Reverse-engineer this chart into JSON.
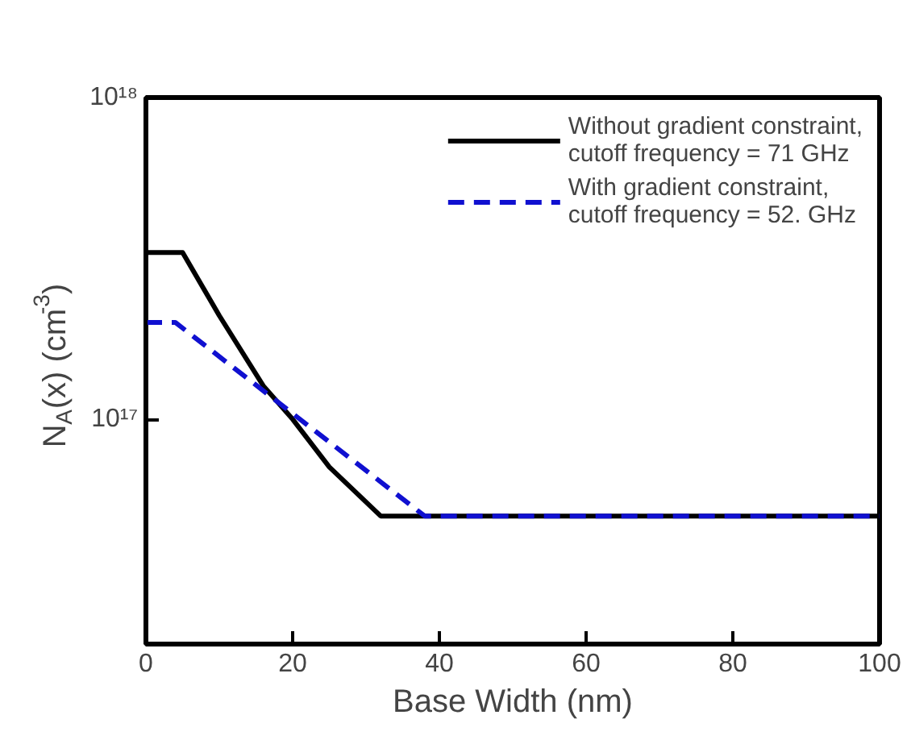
{
  "chart_data": {
    "type": "line",
    "xlabel": "Base Width (nm)",
    "ylabel": "N$_{A}$(x) (cm$^{-3}$)",
    "xlim": [
      0,
      100
    ],
    "xticks": [
      0,
      20,
      40,
      60,
      80,
      100
    ],
    "ylim": [
      2e+16,
      1e+18
    ],
    "yticks": [
      {
        "value": 1e+17,
        "label": "10¹⁷"
      },
      {
        "value": 1e+18,
        "label": "10¹⁸"
      }
    ],
    "log": "y",
    "grid": false,
    "legend": "top right",
    "series": [
      {
        "name": "Without gradient constraint,\ncutoff frequency = 71 GHz",
        "color": "#000000",
        "line_style": "solid",
        "x": [
          0,
          5,
          10,
          16,
          20,
          25,
          32,
          100
        ],
        "values": [
          3.3e+17,
          3.3e+17,
          2.1e+17,
          1.27e+17,
          1e+17,
          7.1e+16,
          5e+16,
          5e+16
        ]
      },
      {
        "name": "With gradient constraint,\ncutoff frequency = 52. GHz",
        "color": "#1010d0",
        "line_style": "dashed",
        "x": [
          0,
          4,
          38,
          100
        ],
        "values": [
          2e+17,
          2e+17,
          5e+16,
          5e+16
        ]
      }
    ]
  }
}
